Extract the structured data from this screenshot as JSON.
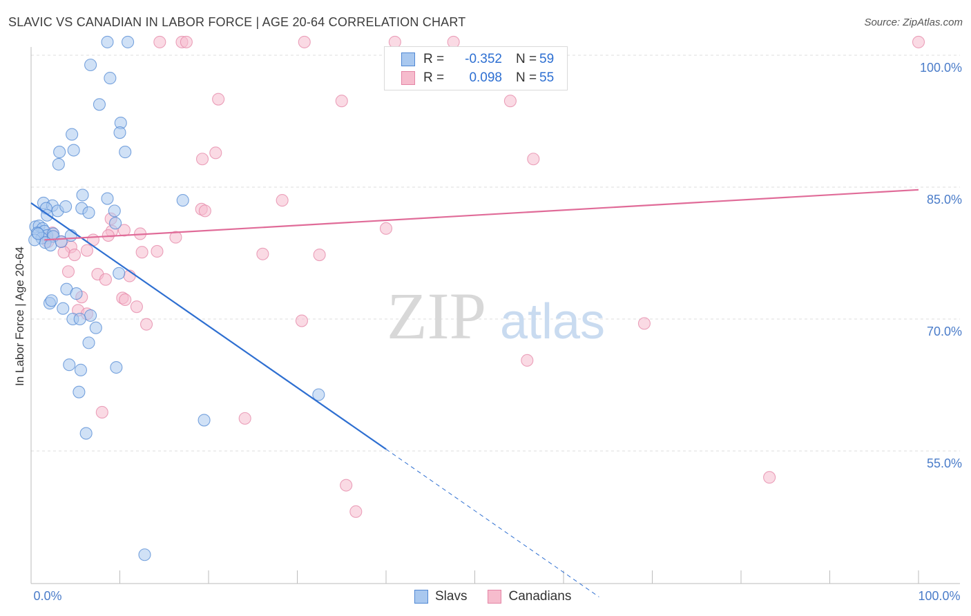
{
  "title": "SLAVIC VS CANADIAN IN LABOR FORCE | AGE 20-64 CORRELATION CHART",
  "source": "Source: ZipAtlas.com",
  "watermark": {
    "zip": "ZIP",
    "atlas": "atlas"
  },
  "colors": {
    "slavs_fill": "#a9c8ef",
    "slavs_stroke": "#4f87d3",
    "slavs_line": "#2e6fd1",
    "canadians_fill": "#f6bccd",
    "canadians_stroke": "#e484a5",
    "canadians_line": "#e06b98",
    "accent_text": "#2d6fd2",
    "grid": "#dcdcdc"
  },
  "legend_top": {
    "rows": [
      {
        "label": "R =",
        "r": "-0.352",
        "n_label": "N =",
        "n": "59"
      },
      {
        "label": "R =",
        "r": "0.098",
        "n_label": "N =",
        "n": "55"
      }
    ]
  },
  "legend_bottom": {
    "slavs": "Slavs",
    "canadians": "Canadians"
  },
  "chart_data": {
    "type": "scatter",
    "title": "SLAVIC VS CANADIAN IN LABOR FORCE | AGE 20-64 CORRELATION CHART",
    "xlabel": "",
    "ylabel": "In Labor Force | Age 20-64",
    "xlim": [
      0,
      100
    ],
    "ylim": [
      40,
      101.5
    ],
    "x_tick_labels": [
      "0.0%",
      "100.0%"
    ],
    "y_ticks": [
      {
        "value": 100,
        "label": "100.0%"
      },
      {
        "value": 85,
        "label": "85.0%"
      },
      {
        "value": 70,
        "label": "70.0%"
      },
      {
        "value": 55,
        "label": "55.0%"
      }
    ],
    "series": [
      {
        "name": "Slavs",
        "r": -0.352,
        "n": 59,
        "trend": {
          "x0": 0,
          "y0": 83.2,
          "x1": 40,
          "y1": 55.2,
          "x_dash_end": 64,
          "y_dash_end": 38.4
        },
        "points": [
          [
            8.6,
            101.5
          ],
          [
            10.9,
            101.5
          ],
          [
            6.7,
            98.9
          ],
          [
            8.9,
            97.4
          ],
          [
            7.7,
            94.4
          ],
          [
            10.1,
            92.3
          ],
          [
            10.0,
            91.2
          ],
          [
            4.6,
            91.0
          ],
          [
            4.8,
            89.2
          ],
          [
            3.2,
            89.0
          ],
          [
            10.6,
            89.0
          ],
          [
            3.1,
            87.6
          ],
          [
            1.4,
            83.2
          ],
          [
            2.4,
            82.9
          ],
          [
            3.0,
            82.3
          ],
          [
            1.7,
            82.6
          ],
          [
            5.7,
            82.6
          ],
          [
            1.8,
            81.8
          ],
          [
            6.5,
            82.1
          ],
          [
            9.4,
            82.3
          ],
          [
            9.5,
            80.9
          ],
          [
            3.9,
            82.8
          ],
          [
            5.8,
            84.1
          ],
          [
            8.6,
            83.7
          ],
          [
            17.1,
            83.5
          ],
          [
            0.5,
            80.5
          ],
          [
            0.9,
            80.6
          ],
          [
            1.3,
            80.3
          ],
          [
            1.5,
            80.0
          ],
          [
            0.7,
            79.8
          ],
          [
            1.8,
            79.5
          ],
          [
            2.5,
            79.7
          ],
          [
            4.5,
            79.5
          ],
          [
            1.2,
            79.2
          ],
          [
            2.5,
            79.4
          ],
          [
            1.6,
            78.7
          ],
          [
            0.4,
            79.0
          ],
          [
            2.2,
            78.4
          ],
          [
            3.4,
            78.8
          ],
          [
            0.8,
            79.7
          ],
          [
            9.9,
            75.2
          ],
          [
            4.0,
            73.4
          ],
          [
            5.1,
            72.9
          ],
          [
            2.1,
            71.8
          ],
          [
            2.3,
            72.1
          ],
          [
            3.6,
            71.2
          ],
          [
            6.7,
            70.4
          ],
          [
            4.7,
            70.0
          ],
          [
            5.5,
            70.0
          ],
          [
            7.3,
            69.0
          ],
          [
            6.5,
            67.3
          ],
          [
            4.3,
            64.8
          ],
          [
            5.6,
            64.2
          ],
          [
            9.6,
            64.5
          ],
          [
            5.4,
            61.7
          ],
          [
            32.4,
            61.4
          ],
          [
            19.5,
            58.5
          ],
          [
            6.2,
            57.0
          ],
          [
            12.8,
            43.2
          ]
        ]
      },
      {
        "name": "Canadians",
        "r": 0.098,
        "n": 55,
        "trend": {
          "x0": 1.5,
          "y0": 79.0,
          "x1": 100,
          "y1": 84.7
        },
        "points": [
          [
            14.5,
            101.5
          ],
          [
            17.0,
            101.5
          ],
          [
            17.5,
            101.5
          ],
          [
            30.8,
            101.5
          ],
          [
            41.0,
            101.5
          ],
          [
            47.6,
            101.5
          ],
          [
            100,
            101.5
          ],
          [
            21.1,
            95.0
          ],
          [
            35.0,
            94.8
          ],
          [
            54.0,
            94.8
          ],
          [
            19.3,
            88.2
          ],
          [
            20.8,
            88.9
          ],
          [
            56.6,
            88.2
          ],
          [
            19.2,
            82.5
          ],
          [
            19.6,
            82.3
          ],
          [
            28.3,
            83.5
          ],
          [
            40.0,
            80.3
          ],
          [
            9.0,
            81.4
          ],
          [
            9.1,
            80.0
          ],
          [
            10.5,
            80.1
          ],
          [
            12.3,
            79.7
          ],
          [
            2.4,
            79.8
          ],
          [
            1.8,
            79.2
          ],
          [
            3.4,
            78.8
          ],
          [
            16.3,
            79.3
          ],
          [
            7.0,
            79.0
          ],
          [
            8.7,
            79.5
          ],
          [
            4.5,
            78.2
          ],
          [
            1.9,
            78.8
          ],
          [
            3.7,
            77.6
          ],
          [
            4.9,
            77.3
          ],
          [
            6.3,
            77.8
          ],
          [
            14.2,
            77.7
          ],
          [
            12.5,
            77.6
          ],
          [
            26.1,
            77.4
          ],
          [
            32.5,
            77.3
          ],
          [
            4.2,
            75.4
          ],
          [
            7.5,
            75.1
          ],
          [
            11.1,
            74.9
          ],
          [
            8.4,
            74.5
          ],
          [
            10.3,
            72.4
          ],
          [
            10.6,
            72.2
          ],
          [
            11.9,
            71.4
          ],
          [
            5.7,
            72.5
          ],
          [
            5.3,
            71.0
          ],
          [
            6.3,
            70.6
          ],
          [
            30.5,
            69.8
          ],
          [
            13.0,
            69.4
          ],
          [
            69.1,
            69.5
          ],
          [
            55.9,
            65.3
          ],
          [
            8.0,
            59.4
          ],
          [
            24.1,
            58.7
          ],
          [
            35.5,
            51.1
          ],
          [
            36.6,
            48.1
          ],
          [
            83.2,
            52.0
          ]
        ]
      }
    ]
  }
}
